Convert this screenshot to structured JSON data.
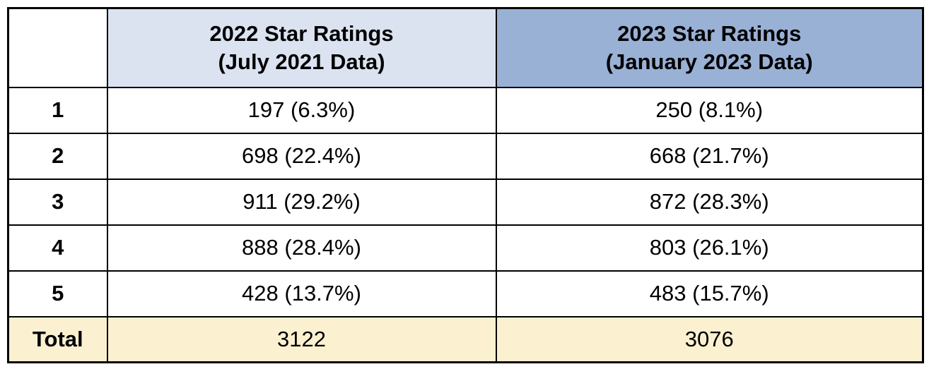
{
  "table": {
    "header": {
      "corner": "",
      "col_2022": "2022 Star Ratings\n(July 2021 Data)",
      "col_2023": "2023 Star Ratings\n(January 2023 Data)"
    },
    "rows": [
      {
        "label": "1",
        "y2022": "197 (6.3%)",
        "y2023": "250 (8.1%)"
      },
      {
        "label": "2",
        "y2022": "698 (22.4%)",
        "y2023": "668 (21.7%)"
      },
      {
        "label": "3",
        "y2022": "911 (29.2%)",
        "y2023": "872 (28.3%)"
      },
      {
        "label": "4",
        "y2022": "888 (28.4%)",
        "y2023": "803 (26.1%)"
      },
      {
        "label": "5",
        "y2022": "428 (13.7%)",
        "y2023": "483 (15.7%)"
      }
    ],
    "total": {
      "label": "Total",
      "y2022": "3122",
      "y2023": "3076"
    }
  },
  "colors": {
    "header_2022_bg": "#dbe3f1",
    "header_2023_bg": "#9ab1d6",
    "total_row_bg": "#fbf1d1",
    "border": "#000000",
    "text": "#000000"
  },
  "chart_data": {
    "type": "table",
    "title": "",
    "columns": [
      "",
      "2022 Star Ratings (July 2021 Data)",
      "2023 Star Ratings (January 2023 Data)"
    ],
    "rows": [
      [
        "1",
        "197 (6.3%)",
        "250 (8.1%)"
      ],
      [
        "2",
        "698 (22.4%)",
        "668 (21.7%)"
      ],
      [
        "3",
        "911 (29.2%)",
        "872 (28.3%)"
      ],
      [
        "4",
        "888 (28.4%)",
        "803 (26.1%)"
      ],
      [
        "5",
        "428 (13.7%)",
        "483 (15.7%)"
      ],
      [
        "Total",
        "3122",
        "3076"
      ]
    ],
    "series": [
      {
        "name": "2022 Star Ratings (July 2021 Data) counts",
        "values": [
          197,
          698,
          911,
          888,
          428
        ]
      },
      {
        "name": "2022 Star Ratings (July 2021 Data) percents",
        "values": [
          6.3,
          22.4,
          29.2,
          28.4,
          13.7
        ]
      },
      {
        "name": "2023 Star Ratings (January 2023 Data) counts",
        "values": [
          250,
          668,
          872,
          803,
          483
        ]
      },
      {
        "name": "2023 Star Ratings (January 2023 Data) percents",
        "values": [
          8.1,
          21.7,
          28.3,
          26.1,
          15.7
        ]
      }
    ],
    "categories": [
      "1",
      "2",
      "3",
      "4",
      "5"
    ],
    "totals": {
      "2022": 3122,
      "2023": 3076
    }
  }
}
